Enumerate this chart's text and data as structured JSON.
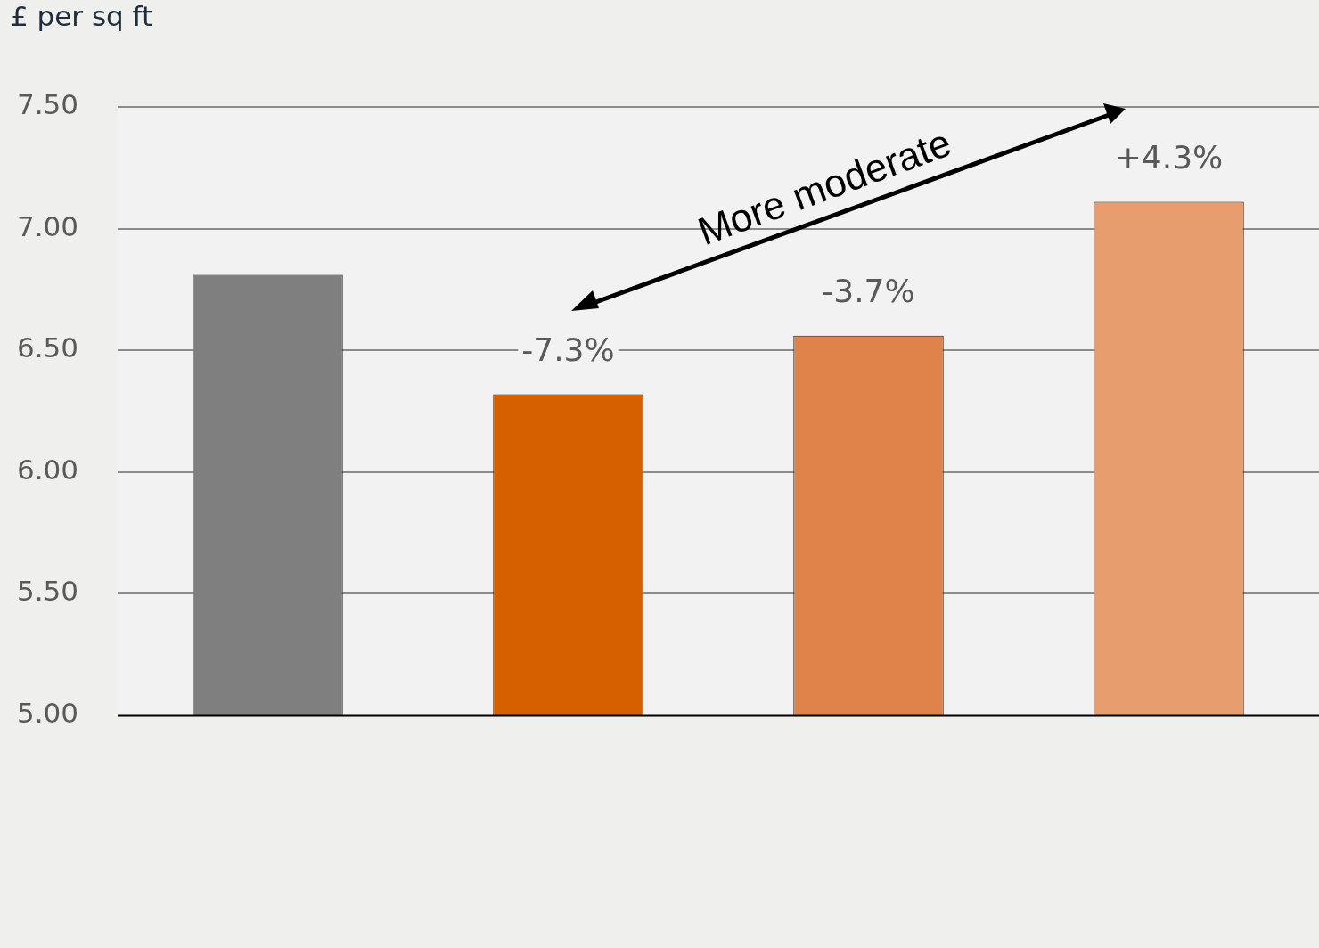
{
  "chart_data": {
    "type": "bar",
    "ylabel": "£ per sq ft",
    "categories": [
      null,
      null,
      null,
      null
    ],
    "values": [
      6.81,
      6.32,
      6.56,
      7.11
    ],
    "colors": [
      "#7f7f7f",
      "#d65f00",
      "#e0834a",
      "#e79d6e"
    ],
    "ylim": [
      5,
      7.5
    ],
    "yticks": [
      {
        "value": 5,
        "label": "5.00"
      },
      {
        "value": 5.5,
        "label": "5.50"
      },
      {
        "value": 6,
        "label": "6.00"
      },
      {
        "value": 6.5,
        "label": "6.50"
      },
      {
        "value": 7,
        "label": "7.00"
      },
      {
        "value": 7.5,
        "label": "7.50"
      }
    ],
    "grid": "y",
    "legend": false,
    "tick_labels": "y",
    "annotations": [
      "-7.3%",
      "-3.7%",
      "+4.3%",
      "More moderate"
    ]
  }
}
